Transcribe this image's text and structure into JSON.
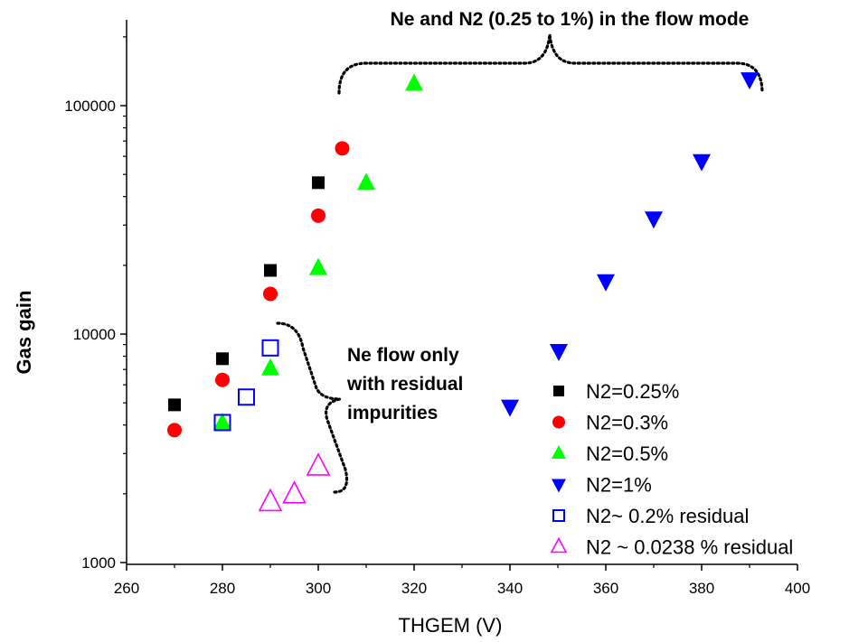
{
  "colors": {
    "black": "#000000",
    "red": "#ff0000",
    "green": "#00ff00",
    "blue": "#0000ff",
    "magenta": "#ff00ff",
    "axis": "#000000"
  },
  "annotations": {
    "flow_mode": "Ne and N2 (0.25 to 1%)  in the flow mode",
    "residual": [
      "Ne flow only",
      "with residual",
      "impurities"
    ]
  },
  "chart_data": {
    "type": "scatter",
    "xlabel": "THGEM (V)",
    "ylabel": "Gas gain",
    "xlim": [
      260,
      400
    ],
    "ylim": [
      1000,
      200000
    ],
    "yscale": "log",
    "grid": false,
    "legend_position": "bottom-right",
    "x_ticks": [
      260,
      280,
      300,
      320,
      340,
      360,
      380,
      400
    ],
    "y_ticks": [
      1000,
      10000,
      100000
    ],
    "series": [
      {
        "name": "N2=0.25%",
        "marker": "square-filled",
        "color": "#000000",
        "points": [
          [
            270,
            4900
          ],
          [
            280,
            7800
          ],
          [
            290,
            19000
          ],
          [
            300,
            46000
          ]
        ]
      },
      {
        "name": "N2=0.3%",
        "marker": "circle-filled",
        "color": "#ff0000",
        "points": [
          [
            270,
            3800
          ],
          [
            280,
            6300
          ],
          [
            290,
            15000
          ],
          [
            300,
            33000
          ],
          [
            305,
            65000
          ]
        ]
      },
      {
        "name": "N2=0.5%",
        "marker": "triangle-up-filled",
        "color": "#00ff00",
        "points": [
          [
            280,
            4100
          ],
          [
            290,
            7100
          ],
          [
            300,
            19500
          ],
          [
            310,
            46000
          ],
          [
            320,
            125000
          ]
        ]
      },
      {
        "name": "N2=1%",
        "marker": "triangle-down-filled",
        "color": "#0000ff",
        "points": [
          [
            340,
            4800
          ],
          [
            360,
            17000
          ],
          [
            370,
            32000
          ],
          [
            380,
            57000
          ],
          [
            390,
            130000
          ]
        ]
      },
      {
        "name": "N2~ 0.2% residual",
        "marker": "square-open",
        "color": "#0000ff",
        "points": [
          [
            280,
            4100
          ],
          [
            285,
            5300
          ],
          [
            290,
            8700
          ]
        ]
      },
      {
        "name": "N2 ~ 0.0238 % residual",
        "marker": "triangle-up-open",
        "color": "#ff00ff",
        "points": [
          [
            290,
            1850
          ],
          [
            295,
            2000
          ],
          [
            300,
            2650
          ]
        ]
      }
    ]
  }
}
